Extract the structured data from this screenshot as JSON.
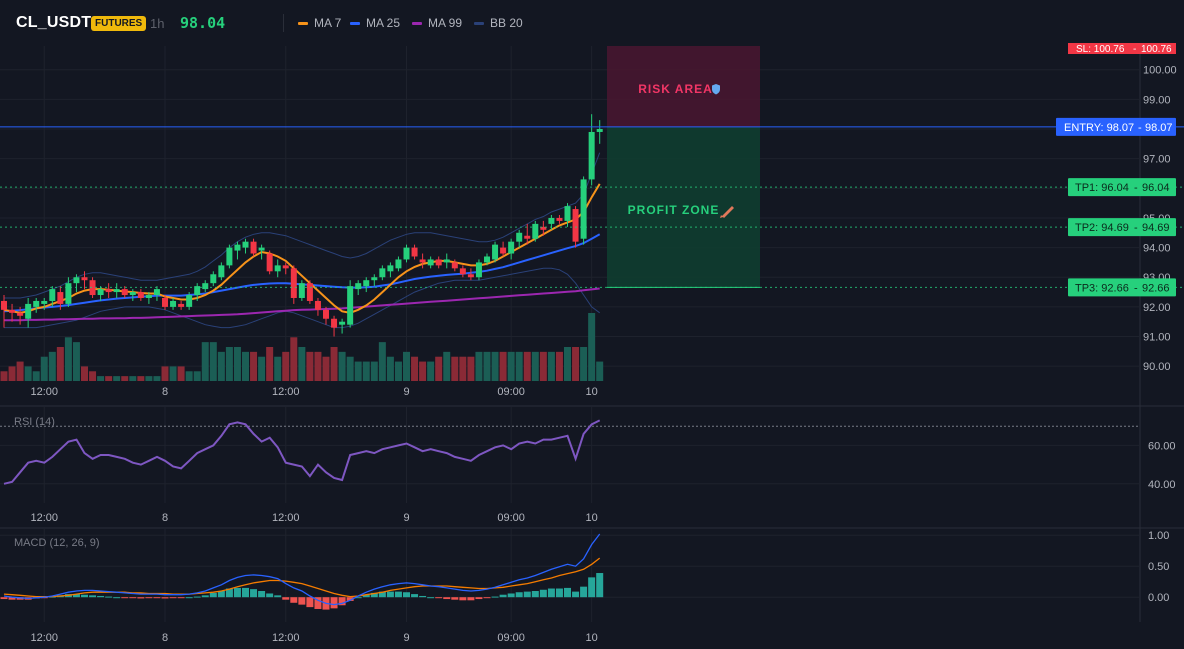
{
  "header": {
    "symbol": "CL_USDT",
    "badge": "FUTURES",
    "interval": "1h",
    "last_price": "98.04",
    "indicators": [
      {
        "label": "MA 7",
        "color": "#f7931a"
      },
      {
        "label": "MA 25",
        "color": "#2962ff"
      },
      {
        "label": "MA 99",
        "color": "#9c27b0"
      },
      {
        "label": "BB 20",
        "color": "#1e3a6e"
      }
    ]
  },
  "colors": {
    "up": "#26d07c",
    "down": "#f23645",
    "vol_up": "#1b5e55",
    "vol_down": "#8a2a36",
    "ma7": "#f7931a",
    "ma25": "#2962ff",
    "ma99": "#9c27b0",
    "bb": "#2a4178",
    "rsi": "#7e57c2",
    "macd": "#2962ff",
    "signal": "#f57c00",
    "hist_up": "#26a69a",
    "hist_down": "#ef5350",
    "entry": "#2962ff",
    "tp": "#26d07c",
    "sl": "#f23645"
  },
  "chart_data": [
    {
      "type": "candlestick",
      "ylim": [
        89.5,
        100.8
      ],
      "y_ticks": [
        "100.00",
        "99.00",
        "98.00",
        "97.00",
        "96.00",
        "95.00",
        "94.00",
        "93.00",
        "92.00",
        "91.00",
        "90.00"
      ],
      "x_labels": [
        {
          "label": "12:00",
          "index": 5
        },
        {
          "label": "8",
          "index": 20
        },
        {
          "label": "12:00",
          "index": 35
        },
        {
          "label": "9",
          "index": 50
        },
        {
          "label": "09:00",
          "index": 63
        },
        {
          "label": "10",
          "index": 73
        }
      ],
      "candles": [
        [
          92.2,
          92.4,
          91.3,
          91.9
        ],
        [
          91.9,
          92.1,
          91.5,
          91.8
        ],
        [
          91.8,
          92.0,
          91.4,
          91.7
        ],
        [
          91.6,
          92.3,
          91.3,
          92.1
        ],
        [
          92.0,
          92.3,
          91.8,
          92.2
        ],
        [
          92.1,
          92.3,
          91.9,
          92.2
        ],
        [
          92.2,
          92.7,
          92.0,
          92.6
        ],
        [
          92.5,
          92.7,
          91.9,
          92.1
        ],
        [
          92.1,
          93.0,
          92.0,
          92.8
        ],
        [
          92.8,
          93.1,
          92.5,
          93.0
        ],
        [
          93.0,
          93.2,
          92.6,
          92.9
        ],
        [
          92.9,
          93.0,
          92.3,
          92.4
        ],
        [
          92.4,
          92.7,
          92.2,
          92.6
        ],
        [
          92.6,
          92.8,
          92.3,
          92.5
        ],
        [
          92.5,
          92.8,
          92.3,
          92.6
        ],
        [
          92.6,
          92.7,
          92.3,
          92.4
        ],
        [
          92.4,
          92.6,
          92.2,
          92.5
        ],
        [
          92.5,
          92.6,
          92.2,
          92.3
        ],
        [
          92.3,
          92.5,
          92.1,
          92.4
        ],
        [
          92.4,
          92.7,
          92.2,
          92.6
        ],
        [
          92.3,
          92.4,
          91.9,
          92.0
        ],
        [
          92.0,
          92.3,
          91.9,
          92.2
        ],
        [
          92.1,
          92.2,
          91.9,
          92.0
        ],
        [
          92.0,
          92.5,
          91.9,
          92.4
        ],
        [
          92.4,
          92.8,
          92.2,
          92.7
        ],
        [
          92.6,
          92.9,
          92.5,
          92.8
        ],
        [
          92.8,
          93.2,
          92.7,
          93.1
        ],
        [
          93.0,
          93.5,
          92.9,
          93.4
        ],
        [
          93.4,
          94.1,
          93.3,
          94.0
        ],
        [
          93.9,
          94.2,
          93.6,
          94.1
        ],
        [
          94.0,
          94.3,
          93.8,
          94.2
        ],
        [
          94.2,
          94.3,
          93.7,
          93.8
        ],
        [
          93.9,
          94.1,
          93.6,
          94.0
        ],
        [
          93.8,
          93.9,
          93.1,
          93.2
        ],
        [
          93.2,
          93.6,
          93.0,
          93.4
        ],
        [
          93.4,
          93.5,
          93.1,
          93.3
        ],
        [
          93.3,
          93.4,
          92.1,
          92.3
        ],
        [
          92.3,
          92.9,
          92.2,
          92.8
        ],
        [
          92.8,
          92.9,
          92.1,
          92.2
        ],
        [
          92.2,
          92.3,
          91.7,
          91.9
        ],
        [
          91.9,
          92.0,
          91.4,
          91.6
        ],
        [
          91.6,
          91.7,
          91.0,
          91.3
        ],
        [
          91.4,
          91.6,
          91.1,
          91.5
        ],
        [
          91.4,
          92.9,
          91.3,
          92.7
        ],
        [
          92.6,
          92.9,
          92.4,
          92.8
        ],
        [
          92.7,
          93.0,
          92.5,
          92.9
        ],
        [
          92.9,
          93.1,
          92.7,
          93.0
        ],
        [
          93.0,
          93.4,
          92.9,
          93.3
        ],
        [
          93.2,
          93.5,
          93.0,
          93.4
        ],
        [
          93.3,
          93.7,
          93.2,
          93.6
        ],
        [
          93.6,
          94.1,
          93.5,
          94.0
        ],
        [
          94.0,
          94.1,
          93.6,
          93.7
        ],
        [
          93.6,
          93.8,
          93.3,
          93.5
        ],
        [
          93.4,
          93.7,
          93.3,
          93.6
        ],
        [
          93.6,
          93.7,
          93.3,
          93.4
        ],
        [
          93.5,
          93.8,
          93.3,
          93.6
        ],
        [
          93.5,
          93.6,
          93.2,
          93.3
        ],
        [
          93.3,
          93.4,
          93.0,
          93.1
        ],
        [
          93.1,
          93.3,
          92.9,
          93.0
        ],
        [
          93.0,
          93.6,
          92.9,
          93.5
        ],
        [
          93.5,
          93.8,
          93.4,
          93.7
        ],
        [
          93.6,
          94.2,
          93.5,
          94.1
        ],
        [
          94.0,
          94.2,
          93.7,
          93.8
        ],
        [
          93.8,
          94.3,
          93.6,
          94.2
        ],
        [
          94.2,
          94.6,
          94.0,
          94.5
        ],
        [
          94.4,
          94.8,
          94.1,
          94.3
        ],
        [
          94.3,
          94.9,
          94.2,
          94.8
        ],
        [
          94.7,
          94.9,
          94.4,
          94.6
        ],
        [
          94.8,
          95.1,
          94.6,
          95.0
        ],
        [
          95.0,
          95.1,
          94.8,
          94.9
        ],
        [
          94.9,
          95.5,
          94.7,
          95.4
        ],
        [
          95.3,
          95.4,
          94.0,
          94.2
        ],
        [
          94.3,
          96.4,
          94.1,
          96.3
        ],
        [
          96.3,
          98.5,
          96.1,
          97.9
        ],
        [
          97.9,
          98.3,
          97.5,
          98.0
        ]
      ],
      "ma7": [
        91.9,
        91.85,
        91.8,
        91.85,
        91.95,
        92.0,
        92.1,
        92.2,
        92.3,
        92.45,
        92.55,
        92.6,
        92.6,
        92.58,
        92.55,
        92.52,
        92.5,
        92.47,
        92.45,
        92.45,
        92.35,
        92.3,
        92.25,
        92.25,
        92.3,
        92.4,
        92.55,
        92.75,
        93.0,
        93.25,
        93.5,
        93.7,
        93.85,
        93.8,
        93.7,
        93.55,
        93.3,
        93.05,
        92.8,
        92.55,
        92.3,
        92.05,
        91.85,
        91.8,
        91.9,
        92.05,
        92.25,
        92.5,
        92.75,
        93.0,
        93.2,
        93.35,
        93.45,
        93.5,
        93.55,
        93.55,
        93.5,
        93.45,
        93.4,
        93.4,
        93.45,
        93.55,
        93.7,
        93.85,
        94.0,
        94.15,
        94.3,
        94.45,
        94.6,
        94.75,
        94.85,
        94.95,
        95.2,
        95.7,
        96.15
      ],
      "ma25": [
        91.85,
        91.87,
        91.89,
        91.92,
        91.95,
        91.98,
        92.0,
        92.03,
        92.06,
        92.1,
        92.14,
        92.18,
        92.22,
        92.25,
        92.28,
        92.3,
        92.32,
        92.34,
        92.36,
        92.38,
        92.38,
        92.38,
        92.38,
        92.4,
        92.42,
        92.45,
        92.5,
        92.55,
        92.6,
        92.65,
        92.7,
        92.74,
        92.77,
        92.79,
        92.8,
        92.8,
        92.78,
        92.76,
        92.74,
        92.72,
        92.7,
        92.68,
        92.66,
        92.65,
        92.65,
        92.66,
        92.68,
        92.72,
        92.76,
        92.82,
        92.88,
        92.94,
        92.98,
        93.02,
        93.05,
        93.08,
        93.1,
        93.12,
        93.15,
        93.18,
        93.22,
        93.28,
        93.34,
        93.42,
        93.5,
        93.58,
        93.66,
        93.74,
        93.82,
        93.9,
        93.98,
        94.05,
        94.15,
        94.3,
        94.45
      ],
      "ma99": [
        91.55,
        91.55,
        91.55,
        91.56,
        91.56,
        91.57,
        91.57,
        91.58,
        91.58,
        91.59,
        91.6,
        91.6,
        91.61,
        91.61,
        91.62,
        91.62,
        91.63,
        91.63,
        91.64,
        91.65,
        91.66,
        91.67,
        91.68,
        91.69,
        91.7,
        91.71,
        91.72,
        91.73,
        91.74,
        91.75,
        91.77,
        91.79,
        91.81,
        91.83,
        91.85,
        91.87,
        91.89,
        91.9,
        91.91,
        91.92,
        91.93,
        91.94,
        91.95,
        91.97,
        91.99,
        92.01,
        92.03,
        92.05,
        92.07,
        92.09,
        92.11,
        92.13,
        92.15,
        92.17,
        92.19,
        92.21,
        92.23,
        92.25,
        92.27,
        92.29,
        92.31,
        92.33,
        92.35,
        92.37,
        92.39,
        92.41,
        92.43,
        92.45,
        92.47,
        92.49,
        92.51,
        92.53,
        92.56,
        92.59,
        92.62
      ],
      "bb_upper": [
        92.3,
        92.3,
        92.3,
        92.35,
        92.4,
        92.5,
        92.6,
        92.7,
        92.85,
        93.0,
        93.1,
        93.15,
        93.15,
        93.1,
        93.05,
        93.0,
        92.95,
        92.9,
        92.9,
        92.9,
        92.95,
        93.0,
        93.05,
        93.1,
        93.2,
        93.35,
        93.55,
        93.75,
        94.0,
        94.2,
        94.35,
        94.45,
        94.5,
        94.5,
        94.45,
        94.4,
        94.3,
        94.2,
        94.1,
        94.0,
        93.9,
        93.8,
        93.7,
        93.65,
        93.7,
        93.8,
        93.95,
        94.1,
        94.25,
        94.35,
        94.45,
        94.5,
        94.5,
        94.5,
        94.45,
        94.4,
        94.35,
        94.3,
        94.25,
        94.2,
        94.2,
        94.25,
        94.35,
        94.5,
        94.65,
        94.8,
        94.95,
        95.05,
        95.2,
        95.3,
        95.4,
        95.5,
        95.8,
        96.5,
        97.2
      ],
      "bb_lower": [
        91.3,
        91.3,
        91.3,
        91.3,
        91.3,
        91.35,
        91.4,
        91.45,
        91.5,
        91.55,
        91.65,
        91.75,
        91.85,
        91.9,
        91.95,
        92.0,
        92.0,
        92.0,
        92.0,
        91.95,
        91.9,
        91.8,
        91.7,
        91.6,
        91.5,
        91.4,
        91.35,
        91.3,
        91.3,
        91.35,
        91.4,
        91.5,
        91.6,
        91.7,
        91.8,
        91.85,
        91.8,
        91.7,
        91.6,
        91.5,
        91.4,
        91.3,
        91.3,
        91.35,
        91.45,
        91.6,
        91.75,
        91.9,
        92.05,
        92.2,
        92.35,
        92.5,
        92.6,
        92.7,
        92.8,
        92.85,
        92.9,
        92.9,
        92.9,
        92.9,
        92.95,
        93.0,
        93.05,
        93.1,
        93.15,
        93.2,
        93.25,
        93.3,
        93.3,
        93.25,
        93.1,
        92.8,
        92.4,
        92.0,
        91.8
      ],
      "volume": [
        2,
        3,
        4,
        3,
        2,
        5,
        6,
        7,
        9,
        8,
        3,
        2,
        1,
        1,
        1,
        1,
        1,
        1,
        1,
        1,
        3,
        3,
        3,
        2,
        2,
        8,
        8,
        6,
        7,
        7,
        6,
        6,
        5,
        7,
        5,
        6,
        9,
        7,
        6,
        6,
        5,
        7,
        6,
        5,
        4,
        4,
        4,
        8,
        5,
        4,
        6,
        5,
        4,
        4,
        5,
        6,
        5,
        5,
        5,
        6,
        6,
        6,
        6,
        6,
        6,
        6,
        6,
        6,
        6,
        6,
        7,
        7,
        7,
        14,
        4
      ],
      "annotations": {
        "entry": {
          "price": 98.07,
          "label": "ENTRY: 98.07",
          "value": "98.07"
        },
        "stop_loss": {
          "price": 100.76,
          "label": "SL: 100.76",
          "value": "100.76"
        },
        "take_profits": [
          {
            "price": 96.04,
            "label": "TP1: 96.04",
            "value": "96.04"
          },
          {
            "price": 94.69,
            "label": "TP2: 94.69",
            "value": "94.69"
          },
          {
            "price": 92.66,
            "label": "TP3: 92.66",
            "value": "92.66"
          }
        ],
        "risk_area_label": "RISK AREA",
        "profit_zone_label": "PROFIT ZONE"
      }
    },
    {
      "type": "line",
      "title": "RSI (14)",
      "ylim": [
        30,
        80
      ],
      "y_ticks": [
        "60.00",
        "40.00"
      ],
      "guide_level": 70,
      "values": [
        40,
        41,
        46,
        51,
        52,
        51,
        54,
        58,
        62,
        63,
        56,
        53,
        55,
        55,
        54,
        53,
        51,
        50,
        52,
        54,
        52,
        49,
        48,
        52,
        56,
        58,
        60,
        65,
        71,
        72,
        71,
        66,
        62,
        64,
        59,
        51,
        50,
        49,
        44,
        50,
        46,
        43,
        42,
        55,
        56,
        57,
        56,
        58,
        59,
        60,
        61,
        59,
        57,
        58,
        57,
        56,
        54,
        53,
        52,
        55,
        57,
        59,
        60,
        58,
        61,
        62,
        61,
        63,
        63,
        64,
        65,
        53,
        66,
        71,
        73
      ]
    },
    {
      "type": "line",
      "title": "MACD (12, 26, 9)",
      "ylim": [
        -0.4,
        1.1
      ],
      "y_ticks": [
        "1.00",
        "0.50",
        "0.00"
      ],
      "macd": [
        0.02,
        0.0,
        -0.01,
        -0.02,
        -0.01,
        0.0,
        0.02,
        0.05,
        0.08,
        0.1,
        0.11,
        0.11,
        0.1,
        0.09,
        0.08,
        0.07,
        0.06,
        0.05,
        0.05,
        0.05,
        0.04,
        0.04,
        0.04,
        0.05,
        0.07,
        0.1,
        0.15,
        0.2,
        0.27,
        0.32,
        0.35,
        0.36,
        0.35,
        0.33,
        0.3,
        0.22,
        0.15,
        0.1,
        0.02,
        -0.05,
        -0.1,
        -0.12,
        -0.1,
        -0.05,
        0.02,
        0.08,
        0.13,
        0.17,
        0.2,
        0.22,
        0.23,
        0.22,
        0.2,
        0.18,
        0.17,
        0.15,
        0.13,
        0.11,
        0.1,
        0.11,
        0.13,
        0.16,
        0.2,
        0.24,
        0.28,
        0.31,
        0.35,
        0.4,
        0.45,
        0.49,
        0.53,
        0.5,
        0.62,
        0.85,
        1.02
      ],
      "signal": [
        0.05,
        0.04,
        0.03,
        0.02,
        0.01,
        0.01,
        0.01,
        0.02,
        0.03,
        0.05,
        0.07,
        0.08,
        0.08,
        0.08,
        0.08,
        0.08,
        0.07,
        0.07,
        0.06,
        0.06,
        0.06,
        0.05,
        0.05,
        0.05,
        0.06,
        0.07,
        0.08,
        0.1,
        0.13,
        0.17,
        0.2,
        0.23,
        0.25,
        0.27,
        0.27,
        0.26,
        0.24,
        0.22,
        0.18,
        0.14,
        0.1,
        0.06,
        0.03,
        0.01,
        0.02,
        0.04,
        0.06,
        0.08,
        0.11,
        0.13,
        0.15,
        0.17,
        0.18,
        0.18,
        0.18,
        0.18,
        0.17,
        0.16,
        0.15,
        0.14,
        0.14,
        0.15,
        0.16,
        0.18,
        0.2,
        0.22,
        0.25,
        0.28,
        0.31,
        0.35,
        0.38,
        0.41,
        0.45,
        0.53,
        0.63
      ],
      "histogram": [
        -0.03,
        -0.04,
        -0.04,
        -0.04,
        -0.02,
        -0.01,
        0.01,
        0.03,
        0.05,
        0.05,
        0.04,
        0.03,
        0.02,
        0.01,
        0.0,
        -0.01,
        -0.01,
        -0.02,
        -0.01,
        -0.01,
        -0.02,
        -0.01,
        -0.01,
        0.0,
        0.01,
        0.03,
        0.07,
        0.1,
        0.14,
        0.15,
        0.15,
        0.13,
        0.1,
        0.06,
        0.03,
        -0.04,
        -0.09,
        -0.12,
        -0.16,
        -0.19,
        -0.2,
        -0.18,
        -0.13,
        -0.06,
        0.0,
        0.04,
        0.07,
        0.09,
        0.09,
        0.09,
        0.08,
        0.05,
        0.02,
        0.0,
        -0.01,
        -0.03,
        -0.04,
        -0.05,
        -0.05,
        -0.03,
        -0.01,
        0.01,
        0.04,
        0.06,
        0.08,
        0.09,
        0.1,
        0.12,
        0.14,
        0.14,
        0.15,
        0.09,
        0.17,
        0.32,
        0.39
      ]
    }
  ]
}
